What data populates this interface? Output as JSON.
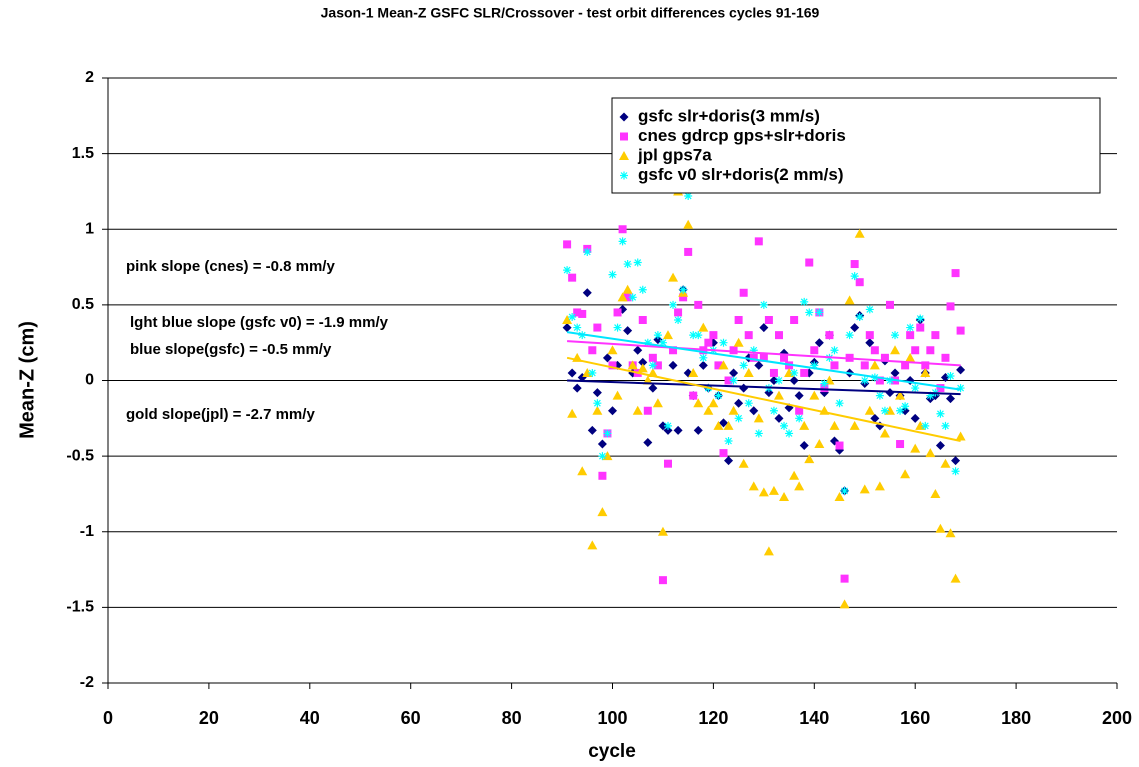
{
  "chart_data": {
    "type": "scatter",
    "title": "Jason-1 Mean-Z  GSFC SLR/Crossover - test orbit differences cycles 91-169",
    "x_label": "cycle",
    "y_label": "Mean-Z (cm)",
    "xlim": [
      0,
      200
    ],
    "xticks": [
      0,
      20,
      40,
      60,
      80,
      100,
      120,
      140,
      160,
      180,
      200
    ],
    "ylim": [
      -2,
      2
    ],
    "yticks": [
      -2,
      -1.5,
      -1,
      -0.5,
      0,
      0.5,
      1,
      1.5,
      2
    ],
    "grid": true,
    "legend": "top-right",
    "x": [
      91,
      92,
      93,
      94,
      95,
      96,
      97,
      98,
      99,
      100,
      101,
      102,
      103,
      104,
      105,
      106,
      107,
      108,
      109,
      110,
      111,
      112,
      113,
      114,
      115,
      116,
      117,
      118,
      119,
      120,
      121,
      122,
      123,
      124,
      125,
      126,
      127,
      128,
      129,
      130,
      131,
      132,
      133,
      134,
      135,
      136,
      137,
      138,
      139,
      140,
      141,
      142,
      143,
      144,
      145,
      146,
      147,
      148,
      149,
      150,
      151,
      152,
      153,
      154,
      155,
      156,
      157,
      158,
      159,
      160,
      161,
      162,
      163,
      164,
      165,
      166,
      167,
      168,
      169
    ],
    "series": [
      {
        "name": "gsfc slr+doris(3 mm/s)",
        "color": "#000080",
        "marker": "diamond",
        "values": [
          0.35,
          0.05,
          -0.05,
          0.02,
          0.58,
          -0.33,
          -0.08,
          -0.42,
          0.15,
          -0.2,
          0.1,
          0.47,
          0.33,
          0.05,
          0.2,
          0.12,
          -0.41,
          -0.05,
          0.27,
          -0.3,
          -0.33,
          0.1,
          -0.33,
          0.6,
          0.05,
          -0.1,
          -0.33,
          0.1,
          -0.05,
          0.25,
          -0.1,
          -0.28,
          -0.53,
          0.05,
          -0.15,
          -0.05,
          0.15,
          -0.2,
          0.1,
          0.35,
          -0.08,
          0,
          -0.25,
          0.18,
          -0.18,
          0,
          -0.1,
          -0.43,
          0.05,
          0.12,
          0.25,
          -0.08,
          0.3,
          -0.4,
          -0.46,
          -0.73,
          0.05,
          0.35,
          0.43,
          -0.02,
          0.25,
          -0.25,
          -0.3,
          0.13,
          -0.08,
          0.05,
          -0.1,
          -0.2,
          0,
          -0.25,
          0.4,
          0.05,
          -0.12,
          -0.1,
          -0.43,
          0.02,
          -0.12,
          -0.53,
          0.07
        ]
      },
      {
        "name": "cnes gdrcp gps+slr+doris",
        "color": "#ff33ff",
        "marker": "square",
        "values": [
          0.9,
          0.68,
          0.45,
          0.44,
          0.87,
          0.2,
          0.35,
          -0.63,
          -0.35,
          0.1,
          0.45,
          1,
          0.55,
          0.1,
          0.05,
          0.4,
          -0.2,
          0.15,
          0.1,
          -1.32,
          -0.55,
          0.2,
          0.45,
          0.55,
          0.85,
          -0.1,
          0.5,
          0.2,
          0.25,
          0.3,
          0.1,
          -0.48,
          0,
          0.2,
          0.4,
          0.58,
          0.3,
          0.15,
          0.92,
          0.15,
          0.4,
          0.05,
          0.3,
          0.15,
          0.1,
          0.4,
          -0.2,
          0.05,
          0.78,
          0.2,
          0.45,
          -0.05,
          0.3,
          0.1,
          -0.43,
          -1.31,
          0.15,
          0.77,
          0.65,
          0.1,
          0.3,
          0.2,
          0,
          0.15,
          0.5,
          0,
          -0.42,
          0.1,
          0.3,
          0.2,
          0.35,
          0.1,
          0.2,
          0.3,
          -0.05,
          0.15,
          0.49,
          0.71,
          0.33
        ]
      },
      {
        "name": "jpl gps7a",
        "color": "#ffcc00",
        "marker": "triangle",
        "values": [
          0.4,
          -0.22,
          0.15,
          -0.6,
          0.05,
          -1.09,
          -0.2,
          -0.87,
          -0.5,
          0.2,
          -0.1,
          0.55,
          0.6,
          0.1,
          -0.2,
          0.08,
          0,
          0.05,
          -0.15,
          -1,
          0.3,
          0.68,
          1.25,
          0.58,
          1.03,
          0.05,
          -0.15,
          0.35,
          -0.2,
          -0.15,
          -0.3,
          0.1,
          -0.3,
          -0.2,
          0.25,
          -0.55,
          0.05,
          -0.7,
          -0.25,
          -0.74,
          -1.13,
          -0.73,
          -0.1,
          -0.77,
          0.05,
          -0.63,
          -0.7,
          -0.3,
          -0.52,
          -0.1,
          -0.42,
          -0.2,
          0,
          -0.3,
          -0.77,
          -1.48,
          0.53,
          -0.3,
          0.97,
          -0.72,
          -0.2,
          0.1,
          -0.7,
          -0.35,
          -0.2,
          0.2,
          -0.1,
          -0.62,
          0.15,
          -0.45,
          -0.3,
          0.05,
          -0.48,
          -0.75,
          -0.98,
          -0.55,
          -1.01,
          -1.31,
          -0.37
        ]
      },
      {
        "name": "gsfc v0 slr+doris(2 mm/s)",
        "color": "#00ffff",
        "marker": "asterisk",
        "values": [
          0.73,
          0.42,
          0.35,
          0.3,
          0.85,
          0.05,
          -0.15,
          -0.5,
          -0.35,
          0.7,
          0.35,
          0.92,
          0.77,
          0.55,
          0.78,
          0.6,
          0.25,
          0.1,
          0.3,
          0.25,
          -0.3,
          0.5,
          0.4,
          0.6,
          1.22,
          0.3,
          0.3,
          0.15,
          -0.05,
          0.2,
          -0.1,
          0.25,
          -0.4,
          0,
          -0.25,
          0.1,
          -0.15,
          0.2,
          -0.35,
          0.5,
          -0.05,
          -0.2,
          0,
          -0.3,
          -0.35,
          0.05,
          -0.25,
          0.52,
          0.45,
          0.1,
          0.45,
          -0.02,
          0.15,
          0.2,
          -0.15,
          -0.73,
          0.3,
          0.69,
          0.42,
          0,
          0.47,
          0.02,
          -0.1,
          -0.2,
          0,
          0.3,
          -0.2,
          -0.17,
          0.35,
          -0.05,
          0.41,
          -0.3,
          -0.1,
          -0.08,
          -0.22,
          -0.3,
          0.03,
          -0.6,
          -0.05
        ]
      }
    ],
    "trendlines": [
      {
        "color": "#000080",
        "x": [
          91,
          169
        ],
        "values": [
          0.0,
          -0.09
        ]
      },
      {
        "color": "#ff33ff",
        "x": [
          91,
          169
        ],
        "values": [
          0.26,
          0.1
        ]
      },
      {
        "color": "#00e5ff",
        "x": [
          91,
          169
        ],
        "values": [
          0.32,
          -0.06
        ]
      },
      {
        "color": "#ffcc00",
        "x": [
          91,
          169
        ],
        "values": [
          0.15,
          -0.4
        ]
      }
    ],
    "annotations": [
      "pink slope (cnes) = -0.8 mm/y",
      "lght blue slope (gsfc v0) = -1.9 mm/y",
      "blue slope(gsfc) = -0.5 mm/y",
      "gold slope(jpl) = -2.7 mm/y"
    ]
  }
}
